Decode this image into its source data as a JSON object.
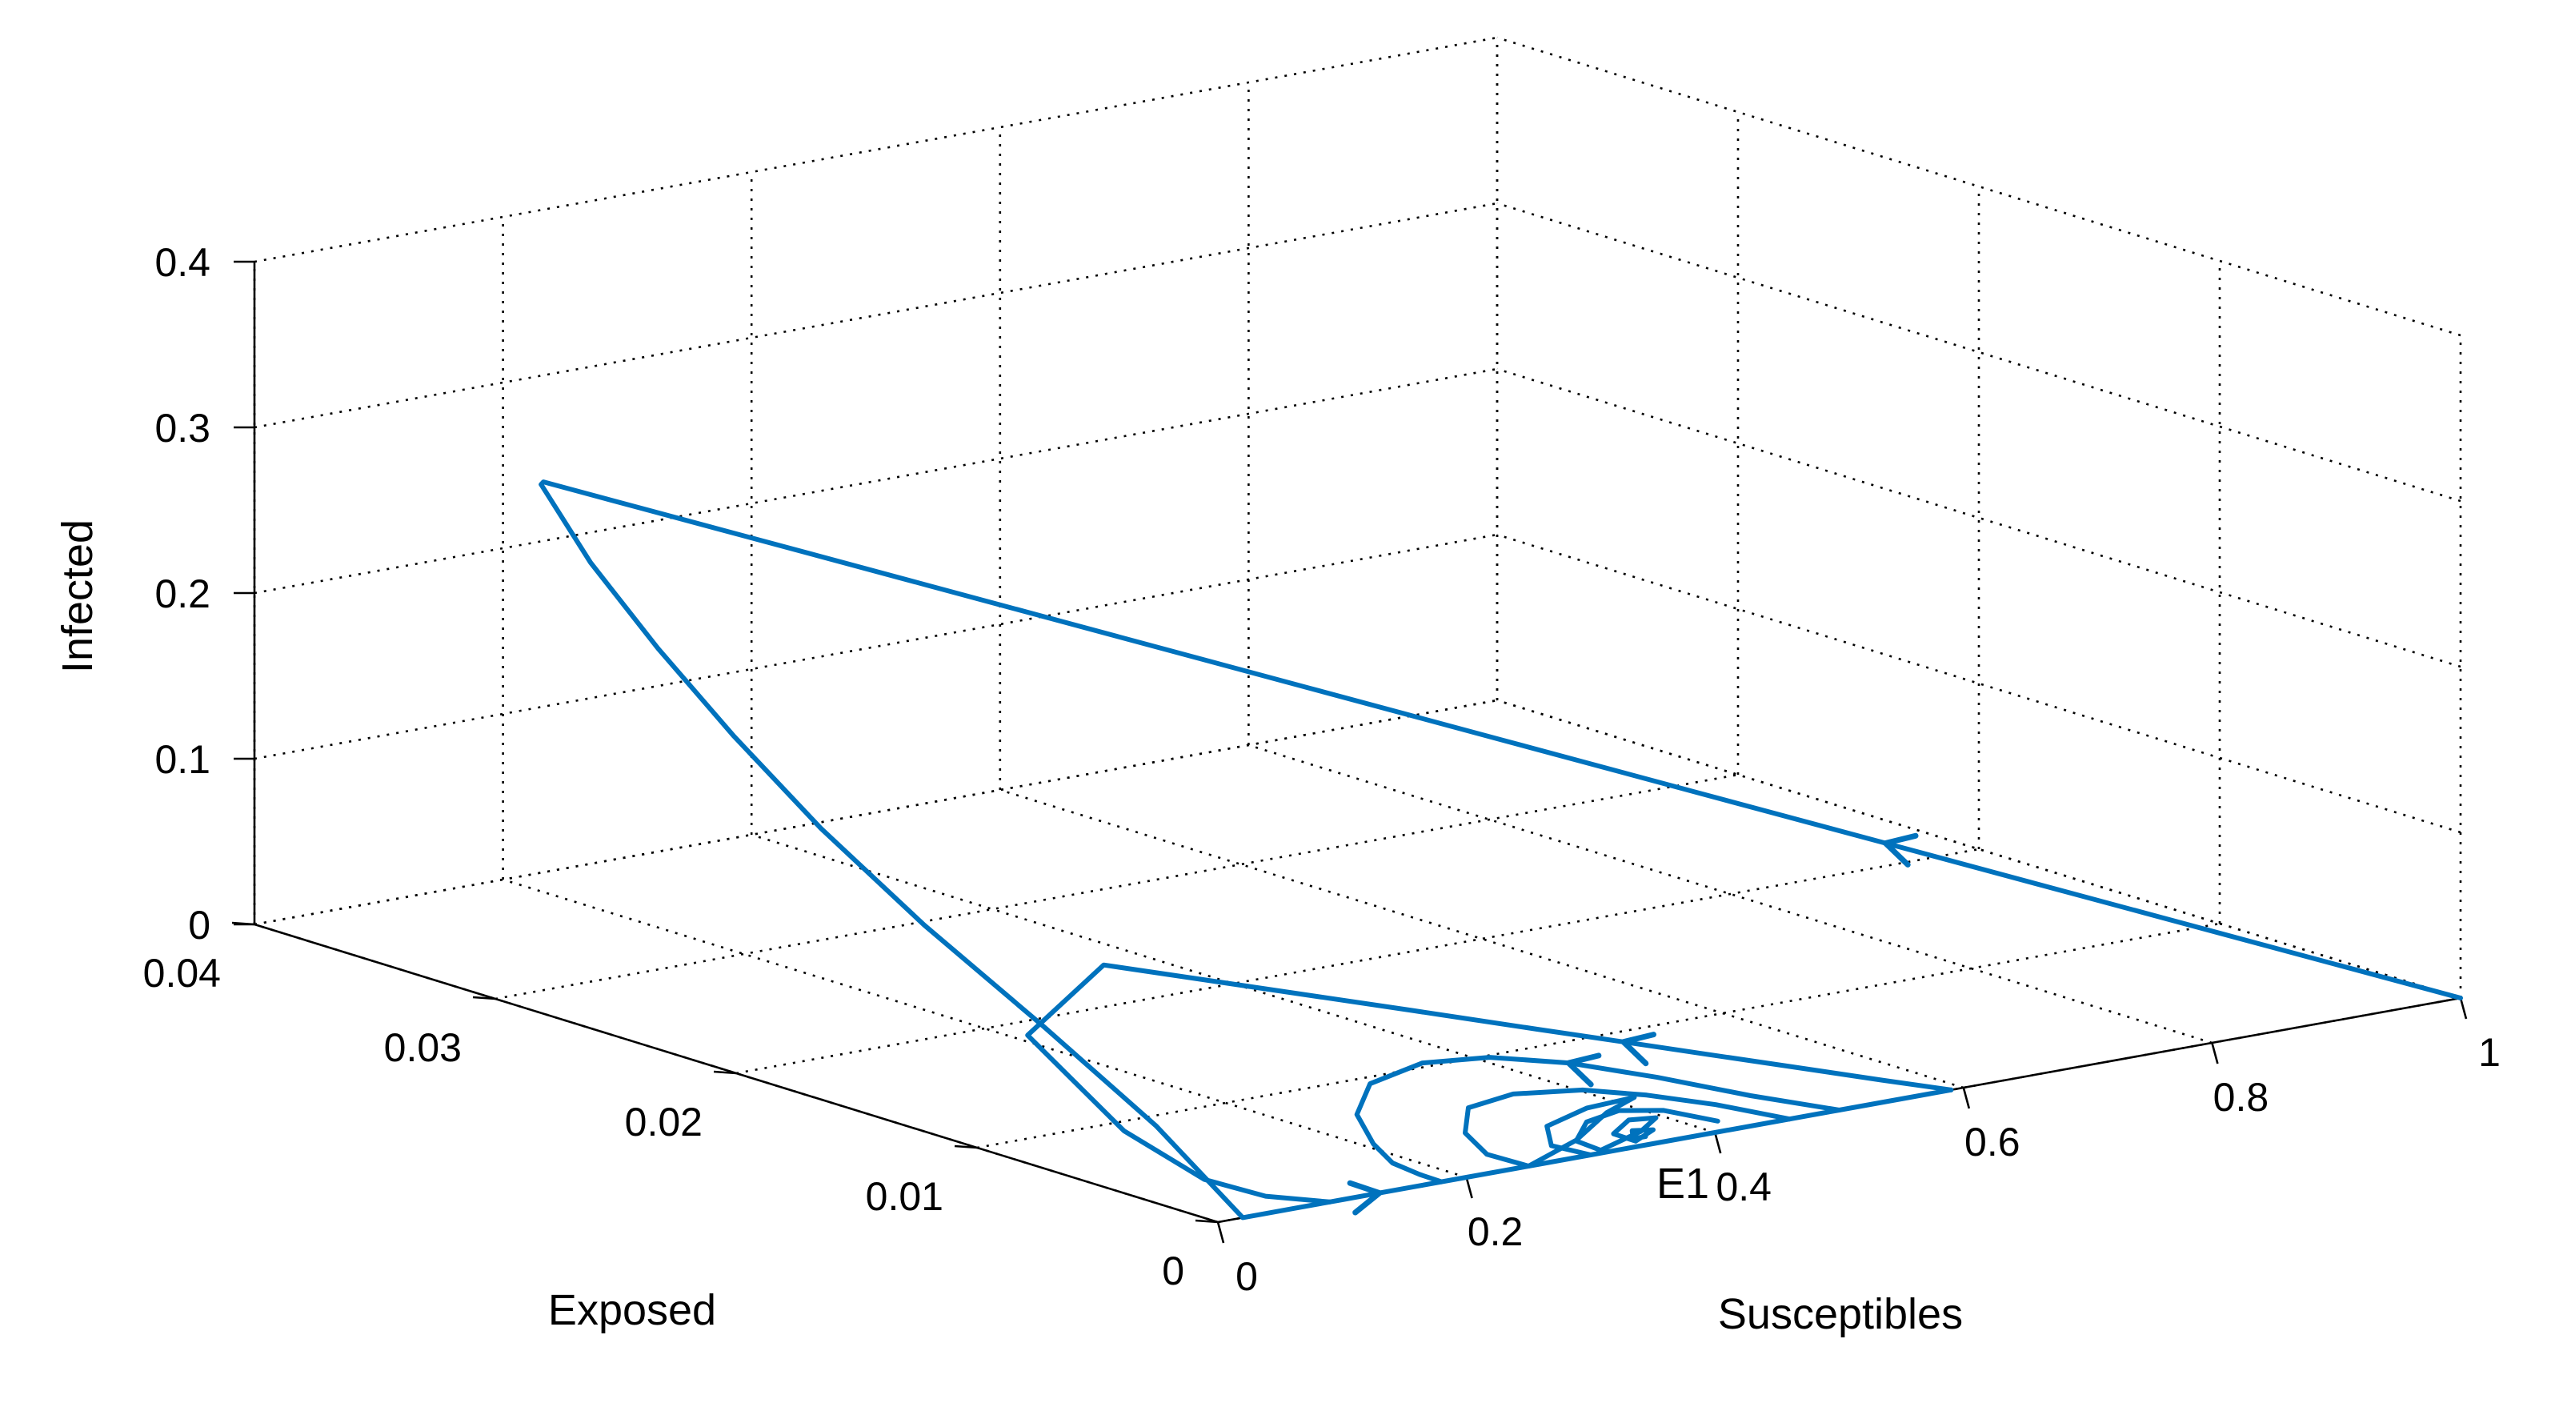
{
  "chart_data": {
    "type": "line",
    "projection": "3d",
    "title": "",
    "xlabel": "Susceptibles",
    "ylabel": "Exposed",
    "zlabel": "Infected",
    "xlim": [
      0,
      1
    ],
    "ylim": [
      0,
      0.04
    ],
    "zlim": [
      0,
      0.4
    ],
    "x_ticks": [
      "0",
      "0.2",
      "0.4",
      "0.6",
      "0.8",
      "1"
    ],
    "y_ticks": [
      "0",
      "0.01",
      "0.02",
      "0.03",
      "0.04"
    ],
    "z_ticks": [
      "0",
      "0.1",
      "0.2",
      "0.3",
      "0.4"
    ],
    "grid": true,
    "line_color": "#0072BD",
    "equilibrium_label": "E1",
    "equilibrium_point": {
      "x": 0.33,
      "y": 0,
      "z": 0
    },
    "series": [
      {
        "points": [
          [
            1.0,
            0,
            0.0
          ],
          [
            0.9,
            0.0028,
            0.0321
          ],
          [
            0.8,
            0.0056,
            0.0642
          ],
          [
            0.7,
            0.0084,
            0.0963
          ],
          [
            0.6,
            0.0112,
            0.1284
          ],
          [
            0.5,
            0.014,
            0.1605
          ],
          [
            0.4,
            0.0168,
            0.1926
          ],
          [
            0.3,
            0.0196,
            0.2247
          ],
          [
            0.2,
            0.0224,
            0.2568
          ],
          [
            0.1,
            0.0252,
            0.2889
          ],
          [
            0.02,
            0.0274,
            0.3146
          ],
          [
            0.0,
            0.028,
            0.321
          ],
          [
            0.0,
            0.0281,
            0.319
          ],
          [
            0.003,
            0.0262,
            0.28
          ],
          [
            0.005,
            0.0235,
            0.24
          ],
          [
            0.008,
            0.0205,
            0.2
          ],
          [
            0.01,
            0.017,
            0.16
          ],
          [
            0.012,
            0.0128,
            0.12
          ],
          [
            0.015,
            0.008,
            0.08
          ],
          [
            0.018,
            0.0035,
            0.04
          ],
          [
            0.02,
            0,
            0
          ],
          [
            0.06,
            0,
            0
          ],
          [
            0.1,
            0,
            0
          ],
          [
            0.13,
            0,
            0
          ],
          [
            0.16,
            0,
            0
          ],
          [
            0.2,
            0,
            0
          ],
          [
            0.25,
            0,
            0
          ],
          [
            0.3,
            0,
            0
          ],
          [
            0.35,
            0,
            0
          ],
          [
            0.4,
            0,
            0
          ],
          [
            0.45,
            0,
            0
          ],
          [
            0.5,
            0,
            0
          ],
          [
            0.55,
            0,
            0
          ],
          [
            0.59,
            0,
            0
          ]
        ]
      },
      {
        "points": [
          [
            0.59,
            0,
            0
          ],
          [
            0.55,
            0.0008,
            0.0077
          ],
          [
            0.5,
            0.0018,
            0.0177
          ],
          [
            0.45,
            0.0028,
            0.0276
          ],
          [
            0.4,
            0.0038,
            0.0376
          ],
          [
            0.35,
            0.0048,
            0.0475
          ],
          [
            0.28,
            0.0063,
            0.0614
          ],
          [
            0.2,
            0.0079,
            0.0773
          ],
          [
            0.1,
            0.0099,
            0.0972
          ],
          [
            0.0,
            0.0079,
            0.0773
          ],
          [
            0.0,
            0.0059,
            0.0574
          ],
          [
            0.0,
            0.0039,
            0.0376
          ],
          [
            0.02,
            0.0016,
            0.0159
          ],
          [
            0.05,
            0.0006,
            0.0062
          ],
          [
            0.09,
            0,
            0.0
          ]
        ]
      },
      {
        "points": [
          [
            0.5,
            0,
            0
          ],
          [
            0.45,
            0.0011,
            0.0105
          ],
          [
            0.4,
            0.0024,
            0.0225
          ],
          [
            0.35,
            0.0035,
            0.033
          ],
          [
            0.3,
            0.0042,
            0.04
          ],
          [
            0.25,
            0.0044,
            0.0425
          ],
          [
            0.2,
            0.004,
            0.0385
          ],
          [
            0.17,
            0.003,
            0.0285
          ],
          [
            0.16,
            0.0018,
            0.0175
          ],
          [
            0.16,
            0.001,
            0.0095
          ],
          [
            0.17,
            0.0004,
            0.004
          ],
          [
            0.18,
            0,
            0.0
          ]
        ]
      },
      {
        "points": [
          [
            0.46,
            0.0,
            0.0
          ],
          [
            0.42,
            0.001,
            0.0096
          ],
          [
            0.38,
            0.0018,
            0.0172
          ],
          [
            0.34,
            0.0024,
            0.023
          ],
          [
            0.29,
            0.0027,
            0.026
          ],
          [
            0.25,
            0.0025,
            0.024
          ],
          [
            0.23,
            0.0016,
            0.0155
          ],
          [
            0.23,
            0.0007,
            0.0067
          ],
          [
            0.25,
            0.0,
            0.0
          ],
          [
            0.3,
            0.0006,
            0.0062
          ],
          [
            0.34,
            0.0014,
            0.0138
          ],
          [
            0.37,
            0.0018,
            0.0172
          ],
          [
            0.33,
            0.0017,
            0.0166
          ],
          [
            0.29,
            0.0013,
            0.0128
          ],
          [
            0.28,
            0.0006,
            0.0056
          ],
          [
            0.3,
            0.0,
            0.0
          ]
        ]
      },
      {
        "points": [
          [
            0.41,
            0.0004,
            0.0037
          ],
          [
            0.38,
            0.0011,
            0.0111
          ],
          [
            0.35,
            0.0014,
            0.0137
          ],
          [
            0.32,
            0.0012,
            0.0118
          ],
          [
            0.3,
            0.0006,
            0.0057
          ],
          [
            0.31,
            0.0001,
            0.001
          ],
          [
            0.35,
            0.0005,
            0.0052
          ],
          [
            0.37,
            0.0009,
            0.0089
          ],
          [
            0.35,
            0.001,
            0.0098
          ],
          [
            0.33,
            0.0006,
            0.006
          ],
          [
            0.34,
            0.0002,
            0.002
          ],
          [
            0.36,
            0.0005,
            0.0048
          ],
          [
            0.345,
            0.0006,
            0.0058
          ],
          [
            0.34,
            0.0003,
            0.003
          ],
          [
            0.35,
            0.0003,
            0.003
          ]
        ]
      }
    ],
    "arrows": [
      {
        "at": [
          0.7,
          0.0084,
          0.0963
        ],
        "dir": "toward-s0"
      },
      {
        "at": [
          0.13,
          0,
          0
        ],
        "dir": "toward-s1"
      },
      {
        "at": [
          0.4,
          0.0038,
          0.0376
        ],
        "dir": "toward-s0"
      },
      {
        "at": [
          0.35,
          0.0035,
          0.033
        ],
        "dir": "toward-s0"
      }
    ]
  }
}
